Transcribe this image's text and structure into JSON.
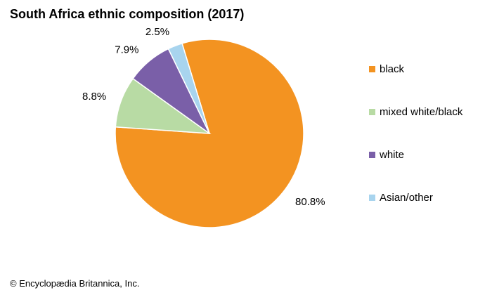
{
  "chart_data": {
    "type": "pie",
    "title": "South Africa ethnic composition (2017)",
    "slices": [
      {
        "label": "black",
        "value": 80.8,
        "display": "80.8%",
        "color": "#f39321"
      },
      {
        "label": "mixed white/black",
        "value": 8.8,
        "display": "8.8%",
        "color": "#b8dba4"
      },
      {
        "label": "white",
        "value": 7.9,
        "display": "7.9%",
        "color": "#7a5fa8"
      },
      {
        "label": "Asian/other",
        "value": 2.5,
        "display": "2.5%",
        "color": "#a8d4ee"
      }
    ],
    "legend_position": "right"
  },
  "credit": "© Encyclopædia Britannica, Inc."
}
